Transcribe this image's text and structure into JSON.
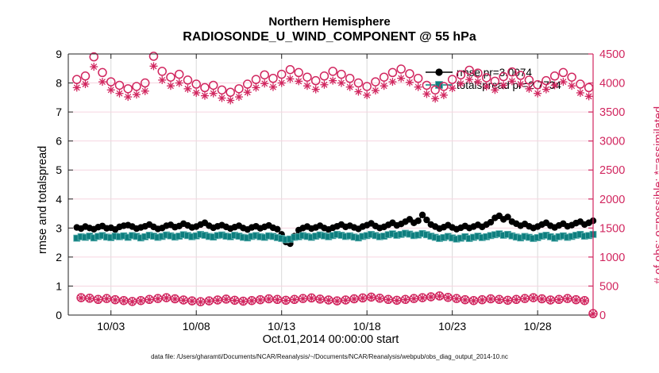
{
  "figure": {
    "title_line1": "Northern Hemisphere",
    "title_line2": "RADIOSONDE_U_WIND_COMPONENT @ 55 hPa",
    "xlabel": "Oct.01,2014 00:00:00 start",
    "ylabel_left": "rmse and totalspread",
    "ylabel_right": "# of obs: o=possible; *=assimilated",
    "caption": "data file: /Users/gharamti/Documents/NCAR/Reanalysis/~/Documents/NCAR/Reanalysis/webpub/obs_diag_output_2014-10.nc"
  },
  "chart_data": {
    "type": "line",
    "title": "Northern Hemisphere RADIOSONDE_U_WIND_COMPONENT @ 55 hPa",
    "x_axis": {
      "label": "Oct.01,2014 00:00:00 start",
      "range_days": [
        -0.5,
        30.25
      ],
      "ticks": [
        {
          "day": 2,
          "label": "10/03"
        },
        {
          "day": 7,
          "label": "10/08"
        },
        {
          "day": 12,
          "label": "10/13"
        },
        {
          "day": 17,
          "label": "10/18"
        },
        {
          "day": 22,
          "label": "10/23"
        },
        {
          "day": 27,
          "label": "10/28"
        }
      ]
    },
    "y_left": {
      "label": "rmse and totalspread",
      "range": [
        0,
        9
      ],
      "ticks": [
        0,
        1,
        2,
        3,
        4,
        5,
        6,
        7,
        8,
        9
      ],
      "grid": true
    },
    "y_right": {
      "label": "# of obs: o=possible; *=assimilated",
      "range": [
        0,
        4500
      ],
      "ticks": [
        0,
        500,
        1000,
        1500,
        2000,
        2500,
        3000,
        3500,
        4000,
        4500
      ],
      "grid": true
    },
    "colors": {
      "obs_pink": "#d1265f",
      "grid_pink": "#f6d5e0",
      "grid_gray": "#d9d9d9",
      "rmse_black": "#000000",
      "spread_teal": "#0d7e7e",
      "spread_teal_edge": "#5fb0b0"
    },
    "legend": [
      {
        "label": "rmse pr=3.0074",
        "series": "rmse",
        "marker": "circle-filled",
        "color_key": "rmse_black"
      },
      {
        "label": "totalspread pr=2.7734",
        "series": "totalspread",
        "marker": "square-filled",
        "color_key": "spread_teal"
      }
    ],
    "series": [
      {
        "name": "possible_00z12z",
        "axis": "right",
        "marker": "circle-open",
        "line": false,
        "color_key": "obs_pink",
        "x_start": 0,
        "x_step": 0.5,
        "values": [
          4060,
          4120,
          4450,
          4180,
          4020,
          3960,
          3900,
          3940,
          4000,
          4460,
          4200,
          4100,
          4150,
          4050,
          3980,
          3920,
          3960,
          3880,
          3840,
          3900,
          3980,
          4060,
          4140,
          4080,
          4150,
          4230,
          4180,
          4100,
          4040,
          4120,
          4200,
          4150,
          4080,
          4000,
          3940,
          4020,
          4100,
          4180,
          4240,
          4160,
          4080,
          3960,
          3880,
          3940,
          4060,
          4140,
          4220,
          4170,
          4090,
          4030,
          4110,
          4190,
          4130,
          4050,
          3970,
          4040,
          4120,
          4180,
          4100,
          3980,
          3920
        ]
      },
      {
        "name": "assimilated_00z12z",
        "axis": "right",
        "marker": "asterisk",
        "line": false,
        "color_key": "obs_pink",
        "x_start": 0,
        "x_step": 0.5,
        "values": [
          3920,
          3980,
          4280,
          4020,
          3880,
          3820,
          3760,
          3800,
          3860,
          4290,
          4050,
          3950,
          4000,
          3900,
          3830,
          3780,
          3820,
          3740,
          3700,
          3760,
          3840,
          3920,
          3990,
          3930,
          4000,
          4070,
          4030,
          3950,
          3890,
          3970,
          4040,
          4000,
          3930,
          3850,
          3790,
          3870,
          3950,
          4020,
          4080,
          4010,
          3930,
          3810,
          3730,
          3790,
          3910,
          3990,
          4060,
          4020,
          3940,
          3880,
          3960,
          4030,
          3980,
          3900,
          3820,
          3890,
          3960,
          4020,
          3950,
          3830,
          3770
        ]
      },
      {
        "name": "possible_06z18z",
        "axis": "right",
        "marker": "circle-open",
        "line": false,
        "color_key": "obs_pink",
        "x_start": 0.25,
        "x_step": 0.5,
        "values": [
          300,
          290,
          270,
          285,
          265,
          250,
          235,
          250,
          270,
          285,
          300,
          280,
          260,
          245,
          230,
          245,
          260,
          275,
          255,
          240,
          250,
          265,
          280,
          270,
          255,
          270,
          285,
          295,
          275,
          260,
          245,
          260,
          280,
          295,
          310,
          290,
          270,
          255,
          270,
          285,
          300,
          315,
          330,
          305,
          285,
          265,
          250,
          265,
          280,
          270,
          255,
          270,
          285,
          300,
          280,
          260,
          270,
          285,
          265,
          250,
          25
        ]
      },
      {
        "name": "assimilated_06z18z",
        "axis": "right",
        "marker": "asterisk",
        "line": false,
        "color_key": "obs_pink",
        "x_start": 0.25,
        "x_step": 0.5,
        "values": [
          295,
          286,
          266,
          281,
          261,
          246,
          231,
          246,
          266,
          281,
          296,
          276,
          256,
          241,
          226,
          241,
          256,
          271,
          251,
          236,
          246,
          261,
          276,
          266,
          251,
          266,
          281,
          291,
          271,
          256,
          241,
          256,
          276,
          291,
          306,
          286,
          266,
          251,
          266,
          281,
          296,
          311,
          326,
          301,
          281,
          261,
          246,
          261,
          276,
          266,
          251,
          266,
          281,
          296,
          276,
          256,
          266,
          281,
          261,
          246,
          20
        ]
      },
      {
        "name": "rmse",
        "axis": "left",
        "marker": "circle-filled",
        "line": true,
        "color_key": "rmse_black",
        "x_start": 0,
        "x_step": 0.25,
        "mean": 3.0074,
        "values": [
          3.02,
          2.98,
          3.05,
          3.0,
          2.96,
          3.03,
          3.07,
          2.99,
          3.01,
          2.95,
          3.04,
          3.08,
          3.1,
          3.05,
          2.98,
          3.02,
          3.06,
          3.12,
          3.04,
          2.97,
          3.0,
          3.08,
          3.11,
          3.03,
          3.07,
          3.15,
          3.09,
          3.02,
          3.05,
          3.12,
          3.18,
          3.08,
          3.01,
          3.06,
          3.1,
          3.04,
          2.98,
          3.03,
          3.08,
          3.0,
          2.95,
          3.02,
          3.06,
          2.99,
          3.04,
          3.09,
          3.01,
          2.96,
          2.78,
          2.52,
          2.46,
          2.72,
          2.93,
          3.0,
          3.05,
          2.98,
          3.02,
          3.08,
          3.0,
          2.95,
          3.01,
          3.06,
          3.12,
          3.04,
          3.08,
          3.02,
          2.97,
          3.05,
          3.1,
          3.16,
          3.07,
          3.0,
          3.04,
          3.11,
          3.18,
          3.09,
          3.14,
          3.22,
          3.3,
          3.18,
          3.25,
          3.45,
          3.28,
          3.12,
          3.05,
          2.98,
          3.03,
          3.1,
          3.02,
          2.96,
          3.01,
          3.07,
          3.0,
          3.05,
          3.11,
          3.04,
          3.12,
          3.2,
          3.35,
          3.42,
          3.3,
          3.38,
          3.22,
          3.15,
          3.08,
          3.14,
          3.06,
          3.0,
          3.05,
          3.12,
          3.18,
          3.08,
          3.02,
          3.09,
          3.15,
          3.06,
          3.1,
          3.17,
          3.22,
          3.12,
          3.18,
          3.25
        ]
      },
      {
        "name": "totalspread",
        "axis": "left",
        "marker": "square-filled",
        "line": true,
        "color_key": "spread_teal",
        "x_start": 0,
        "x_step": 0.25,
        "mean": 2.7734,
        "values": [
          2.65,
          2.7,
          2.68,
          2.72,
          2.66,
          2.71,
          2.74,
          2.69,
          2.67,
          2.72,
          2.7,
          2.73,
          2.68,
          2.74,
          2.71,
          2.66,
          2.7,
          2.75,
          2.72,
          2.68,
          2.71,
          2.76,
          2.73,
          2.69,
          2.72,
          2.77,
          2.74,
          2.7,
          2.73,
          2.78,
          2.75,
          2.71,
          2.69,
          2.74,
          2.76,
          2.72,
          2.7,
          2.75,
          2.72,
          2.68,
          2.66,
          2.71,
          2.74,
          2.7,
          2.68,
          2.73,
          2.71,
          2.67,
          2.64,
          2.6,
          2.62,
          2.68,
          2.7,
          2.74,
          2.71,
          2.68,
          2.72,
          2.76,
          2.73,
          2.7,
          2.74,
          2.78,
          2.75,
          2.71,
          2.73,
          2.69,
          2.66,
          2.71,
          2.74,
          2.78,
          2.74,
          2.7,
          2.72,
          2.77,
          2.8,
          2.75,
          2.78,
          2.82,
          2.79,
          2.74,
          2.76,
          2.81,
          2.77,
          2.72,
          2.68,
          2.64,
          2.67,
          2.71,
          2.66,
          2.62,
          2.65,
          2.7,
          2.64,
          2.68,
          2.72,
          2.67,
          2.7,
          2.74,
          2.77,
          2.8,
          2.75,
          2.78,
          2.73,
          2.69,
          2.66,
          2.71,
          2.68,
          2.64,
          2.67,
          2.72,
          2.75,
          2.7,
          2.65,
          2.7,
          2.73,
          2.68,
          2.71,
          2.75,
          2.78,
          2.72,
          2.74,
          2.78
        ]
      }
    ]
  }
}
